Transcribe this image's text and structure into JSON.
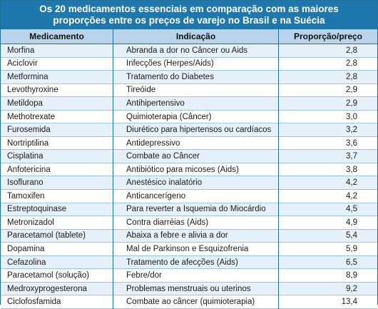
{
  "title": {
    "line1": "Os 20 medicamentos essenciais em comparação com as maiores",
    "line2": "proporções entre os preços de varejo no Brasil e na Suécia"
  },
  "columns": [
    "Medicamento",
    "Indicação",
    "Proporção/preço"
  ],
  "rows": [
    {
      "medicamento": "Morfina",
      "indicacao": "Abranda a dor no Câncer ou Aids",
      "proporcao": "2,8"
    },
    {
      "medicamento": "Aciclovir",
      "indicacao": "Infecções (Herpes/Aids)",
      "proporcao": "2,8"
    },
    {
      "medicamento": "Metformina",
      "indicacao": "Tratamento do Diabetes",
      "proporcao": "2,8"
    },
    {
      "medicamento": "Levothyroxine",
      "indicacao": "Tireóide",
      "proporcao": "2,9"
    },
    {
      "medicamento": "Metildopa",
      "indicacao": "Antihipertensivo",
      "proporcao": "2,9"
    },
    {
      "medicamento": "Methotrexate",
      "indicacao": "Quimioterapia (Câncer)",
      "proporcao": "3,0"
    },
    {
      "medicamento": "Furosemida",
      "indicacao": "Diurético para hipertensos ou cardíacos",
      "proporcao": "3,2"
    },
    {
      "medicamento": "Nortriptilina",
      "indicacao": "Antidepressivo",
      "proporcao": "3,6"
    },
    {
      "medicamento": "Cisplatina",
      "indicacao": "Combate ao Câncer",
      "proporcao": "3,7"
    },
    {
      "medicamento": "Anfotericina",
      "indicacao": "Antibiótico para micoses (Aids)",
      "proporcao": "3,8"
    },
    {
      "medicamento": "Isoflurano",
      "indicacao": "Anestésico inalatório",
      "proporcao": "4,2"
    },
    {
      "medicamento": "Tamoxifen",
      "indicacao": "Anticancerígeno",
      "proporcao": "4,2"
    },
    {
      "medicamento": "Estreptoquinase",
      "indicacao": "Para reverter a Isquemia do Miocárdio",
      "proporcao": "4,5"
    },
    {
      "medicamento": "Metronizadol",
      "indicacao": "Contra diarréias (Aids)",
      "proporcao": "4,9"
    },
    {
      "medicamento": "Paracetamol (tablete)",
      "indicacao": "Abaixa a febre e alivia a dor",
      "proporcao": "5,4"
    },
    {
      "medicamento": "Dopamina",
      "indicacao": "Mal de Parkinson e Esquizofrenia",
      "proporcao": "5,9"
    },
    {
      "medicamento": "Cefazolina",
      "indicacao": "Tratamento de afecções (Aids)",
      "proporcao": "6,5"
    },
    {
      "medicamento": "Paracetamol (solução)",
      "indicacao": "Febre/dor",
      "proporcao": "8,9"
    },
    {
      "medicamento": "Medroxyprogesterona",
      "indicacao": "Problemas menstruais ou uterinos",
      "proporcao": "9,2"
    },
    {
      "medicamento": "Ciclofosfamida",
      "indicacao": "Combate ao câncer (quimioterapia)",
      "proporcao": "13,4"
    }
  ]
}
